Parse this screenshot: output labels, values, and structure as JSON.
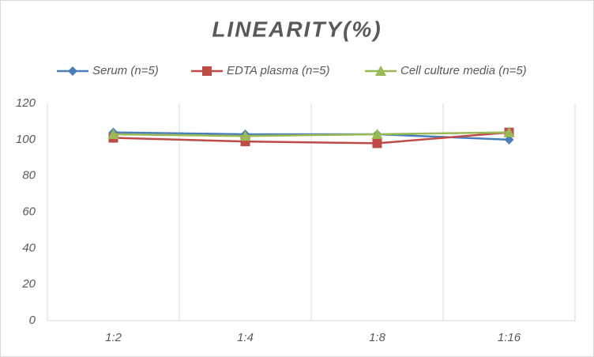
{
  "chart_data": {
    "type": "line",
    "title": "LINEARITY(%)",
    "categories": [
      "1:2",
      "1:4",
      "1:8",
      "1:16"
    ],
    "series": [
      {
        "name": "Serum (n=5)",
        "color": "#4a7ebb",
        "marker": "diamond",
        "values": [
          104,
          103,
          103,
          100
        ]
      },
      {
        "name": "EDTA plasma (n=5)",
        "color": "#be4b48",
        "marker": "square",
        "values": [
          101,
          99,
          98,
          104
        ]
      },
      {
        "name": "Cell culture media (n=5)",
        "color": "#98b954",
        "marker": "triangle",
        "values": [
          103,
          102,
          103,
          104
        ]
      }
    ],
    "ylim": [
      0,
      120
    ],
    "yticks": [
      0,
      20,
      40,
      60,
      80,
      100,
      120
    ],
    "grid": "x",
    "legend": "top"
  }
}
